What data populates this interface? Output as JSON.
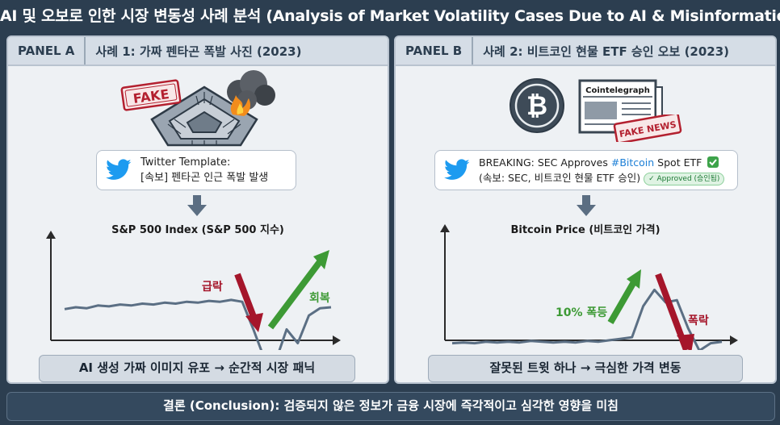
{
  "title": "AI 및 오보로 인한 시장 변동성 사례 분석 (Analysis of Market Volatility Cases Due to AI & Misinformation)",
  "panel_a": {
    "tag": "PANEL A",
    "title": "사례 1: 가짜 펜타곤 폭발 사진 (2023)",
    "fake_stamp": "FAKE",
    "tweet_line1": "Twitter Template:",
    "tweet_line2": "[속보] 펜타곤 인근 폭발 발생",
    "chart_title": "S&P 500 Index (S&P 500 지수)",
    "label_drop": "급락",
    "label_recover": "회복",
    "caption": "AI 생성 가짜 이미지 유포 → 순간적 시장 패닉"
  },
  "panel_b": {
    "tag": "PANEL B",
    "title": "사례 2: 비트코인 현물 ETF 승인 오보 (2023)",
    "newspaper_title": "Cointelegraph",
    "fake_news_stamp": "FAKE NEWS",
    "tweet_line1_prefix": "BREAKING: SEC Approves ",
    "tweet_hashtag": "#Bitcoin",
    "tweet_line1_suffix": " Spot ETF",
    "tweet_line2": "(속보: SEC, 비트코인 현물 ETF 승인)",
    "approved_badge": "✓ Approved (승인됨)",
    "chart_title": "Bitcoin Price (비트코인 가격)",
    "label_surge": "10% 폭등",
    "label_crash": "폭락",
    "caption": "잘못된 트윗 하나 → 극심한 가격 변동"
  },
  "conclusion": "결론 (Conclusion): 검증되지 않은 정보가 금융 시장에 즉각적이고 심각한 영향을 미침",
  "colors": {
    "background": "#2c3e50",
    "panel": "#eef1f4",
    "drop_arrow": "#a5162b",
    "recover_arrow": "#3d9a35",
    "twitter": "#1d9bf0"
  },
  "icons": [
    "pentagon-illustration",
    "smoke-fire-icon",
    "twitter-bird-icon",
    "bitcoin-icon",
    "newspaper-icon",
    "check-icon"
  ],
  "chart_data": [
    {
      "type": "line",
      "title": "S&P 500 Index (S&P 500 지수)",
      "x": [
        0,
        1,
        2,
        3,
        4,
        5,
        6,
        7,
        8,
        9,
        10,
        11,
        12,
        13,
        14,
        15,
        16,
        17,
        18,
        19,
        20,
        21,
        22,
        23,
        24
      ],
      "values": [
        62,
        64,
        63,
        66,
        65,
        67,
        66,
        68,
        67,
        69,
        68,
        70,
        69,
        71,
        70,
        72,
        70,
        40,
        8,
        5,
        40,
        25,
        55,
        63,
        64
      ],
      "annotations": [
        "급락",
        "회복"
      ],
      "grid": false
    },
    {
      "type": "line",
      "title": "Bitcoin Price (비트코인 가격)",
      "x": [
        0,
        1,
        2,
        3,
        4,
        5,
        6,
        7,
        8,
        9,
        10,
        11,
        12,
        13,
        14,
        15,
        16,
        17,
        18,
        19,
        20,
        21,
        22,
        23,
        24
      ],
      "values": [
        20,
        21,
        20,
        22,
        21,
        22,
        21,
        23,
        22,
        21,
        22,
        21,
        23,
        22,
        24,
        26,
        28,
        70,
        92,
        75,
        78,
        40,
        10,
        20,
        22
      ],
      "annotations": [
        "10% 폭등",
        "폭락"
      ],
      "grid": false
    }
  ]
}
